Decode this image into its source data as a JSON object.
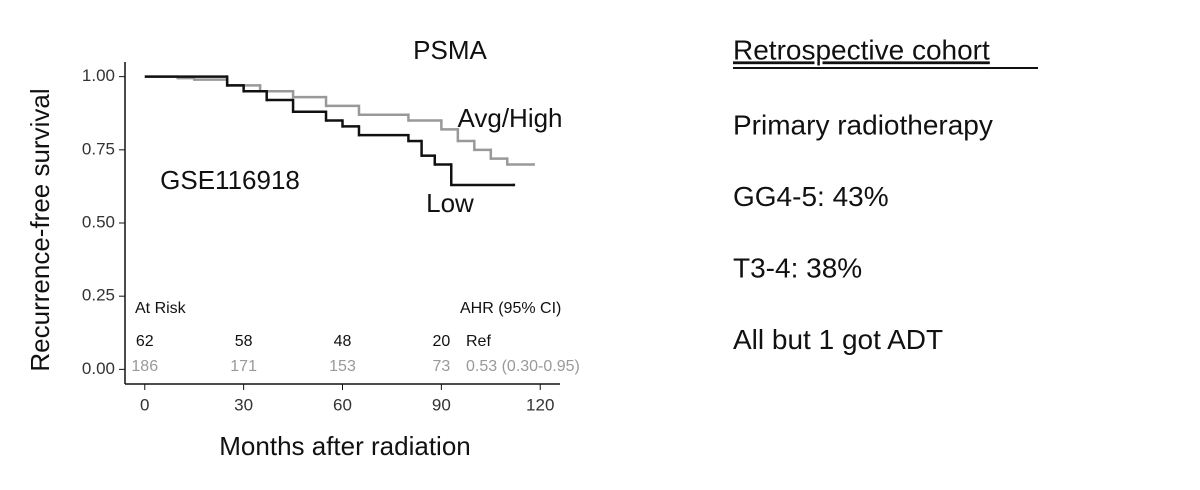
{
  "chart_data": {
    "type": "step",
    "title": "PSMA",
    "x_label": "Months after radiation",
    "y_label": "Recurrence-free survival",
    "xlim": [
      -6,
      126
    ],
    "xticks": [
      0,
      30,
      60,
      90,
      120
    ],
    "ylim": [
      -0.05,
      1.05
    ],
    "yticks": [
      {
        "value": 0,
        "label": "0.00"
      },
      {
        "value": 0.25,
        "label": "0.25"
      },
      {
        "value": 0.5,
        "label": "0.50"
      },
      {
        "value": 0.75,
        "label": "0.75"
      },
      {
        "value": 1,
        "label": "1.00"
      }
    ],
    "annotation": "GSE116918",
    "series": [
      {
        "name": "Low",
        "color": "#111111",
        "x": [
          0,
          25,
          30,
          37,
          45,
          55,
          60,
          65,
          80,
          84,
          88,
          93,
          112
        ],
        "values": [
          1.0,
          0.97,
          0.95,
          0.92,
          0.88,
          0.85,
          0.83,
          0.8,
          0.78,
          0.73,
          0.7,
          0.63,
          0.63
        ],
        "at_risk": [
          62,
          58,
          48,
          20
        ],
        "hr": "Ref"
      },
      {
        "name": "Avg/High",
        "color": "#999999",
        "x": [
          0,
          10,
          15,
          25,
          35,
          45,
          55,
          65,
          80,
          90,
          95,
          100,
          105,
          110,
          118
        ],
        "values": [
          1.0,
          0.995,
          0.99,
          0.97,
          0.95,
          0.93,
          0.9,
          0.87,
          0.85,
          0.82,
          0.78,
          0.75,
          0.72,
          0.7,
          0.7
        ],
        "at_risk": [
          186,
          171,
          153,
          73
        ],
        "hr": "0.53 (0.30-0.95)"
      }
    ],
    "risk_title": "At Risk",
    "hr_title": "AHR (95% CI)"
  },
  "side": {
    "heading": "Retrospective cohort",
    "items": [
      "Primary radiotherapy",
      "GG4-5: 43%",
      "T3-4: 38%",
      "All but 1 got ADT"
    ]
  }
}
